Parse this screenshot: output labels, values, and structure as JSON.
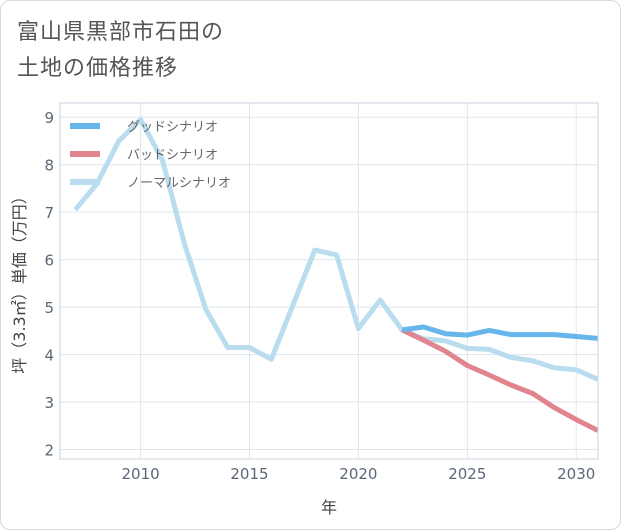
{
  "title": {
    "line1": "富山県黒部市石田の",
    "line2": "土地の価格推移"
  },
  "chart_data": {
    "type": "line",
    "xlabel": "年",
    "ylabel": "坪（3.3㎡）単価（万円）",
    "xlim": [
      2006.3,
      2031.0
    ],
    "ylim": [
      1.8,
      9.3
    ],
    "xticks": [
      2010,
      2015,
      2020,
      2025,
      2030
    ],
    "xtick_labels": [
      "2010",
      "2015",
      "2020",
      "2025",
      "2030"
    ],
    "yticks": [
      2,
      3,
      4,
      5,
      6,
      7,
      8,
      9
    ],
    "ytick_labels": [
      "2",
      "3",
      "4",
      "5",
      "6",
      "7",
      "8",
      "9"
    ],
    "grid": true,
    "legend_position": "top-left",
    "series": [
      {
        "name": "グッドシナリオ",
        "color": "#66b6ec",
        "x": [
          2022,
          2023,
          2024,
          2025,
          2026,
          2027,
          2028,
          2029,
          2030,
          2031
        ],
        "values": [
          4.52,
          4.58,
          4.44,
          4.41,
          4.51,
          4.42,
          4.42,
          4.42,
          4.38,
          4.34
        ]
      },
      {
        "name": "バッドシナリオ",
        "color": "#e0848e",
        "x": [
          2022,
          2023,
          2024,
          2025,
          2026,
          2027,
          2028,
          2029,
          2030,
          2031
        ],
        "values": [
          4.52,
          4.3,
          4.07,
          3.77,
          3.57,
          3.36,
          3.18,
          2.88,
          2.63,
          2.4
        ]
      },
      {
        "name": "ノーマルシナリオ",
        "color": "#b9ddef",
        "x": [
          2007,
          2008,
          2009,
          2010,
          2011,
          2012,
          2013,
          2014,
          2015,
          2016,
          2017,
          2018,
          2019,
          2020,
          2021,
          2022,
          2023,
          2024,
          2025,
          2026,
          2027,
          2028,
          2029,
          2030,
          2031
        ],
        "values": [
          7.05,
          7.6,
          8.5,
          8.95,
          8.1,
          6.35,
          4.95,
          4.15,
          4.15,
          3.9,
          5.05,
          6.2,
          6.1,
          4.55,
          5.15,
          4.52,
          4.33,
          4.29,
          4.13,
          4.11,
          3.94,
          3.87,
          3.72,
          3.68,
          3.48
        ]
      }
    ]
  }
}
